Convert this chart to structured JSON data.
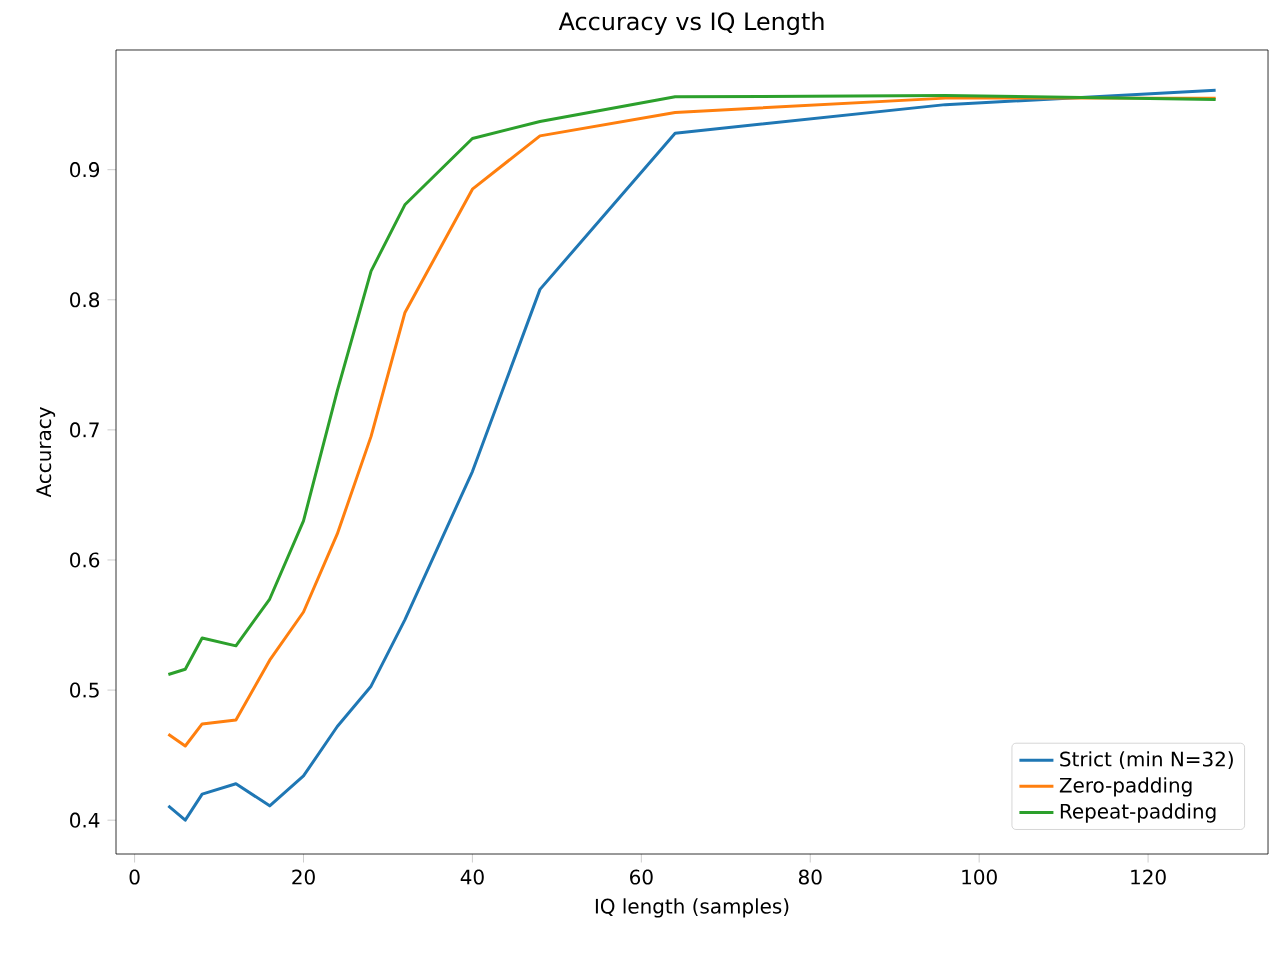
{
  "chart_data": {
    "type": "line",
    "title": "Accuracy vs IQ Length",
    "xlabel": "IQ length (samples)",
    "ylabel": "Accuracy",
    "x": [
      4,
      6,
      8,
      12,
      16,
      20,
      24,
      28,
      32,
      40,
      48,
      64,
      96,
      128
    ],
    "series": [
      {
        "name": "Strict (min N=32)",
        "color": "#1f77b4",
        "values": [
          0.411,
          0.4,
          0.42,
          0.428,
          0.411,
          0.434,
          0.472,
          0.503,
          0.554,
          0.668,
          0.808,
          0.928,
          0.95,
          0.961
        ]
      },
      {
        "name": "Zero-padding",
        "color": "#ff7f0e",
        "values": [
          0.466,
          0.457,
          0.474,
          0.477,
          0.523,
          0.56,
          0.62,
          0.695,
          0.79,
          0.885,
          0.926,
          0.944,
          0.955,
          0.955
        ]
      },
      {
        "name": "Repeat-padding",
        "color": "#2ca02c",
        "values": [
          0.512,
          0.516,
          0.54,
          0.534,
          0.57,
          0.63,
          0.73,
          0.822,
          0.873,
          0.924,
          0.937,
          0.956,
          0.957,
          0.954
        ]
      }
    ],
    "xlim": [
      -2.2,
      134.2
    ],
    "ylim": [
      0.374,
      0.992
    ],
    "xticks": [
      0,
      20,
      40,
      60,
      80,
      100,
      120
    ],
    "yticks": [
      0.4,
      0.5,
      0.6,
      0.7,
      0.8,
      0.9
    ],
    "grid": false,
    "legend": "bottom right",
    "marker": "none",
    "line_style": "solid"
  }
}
